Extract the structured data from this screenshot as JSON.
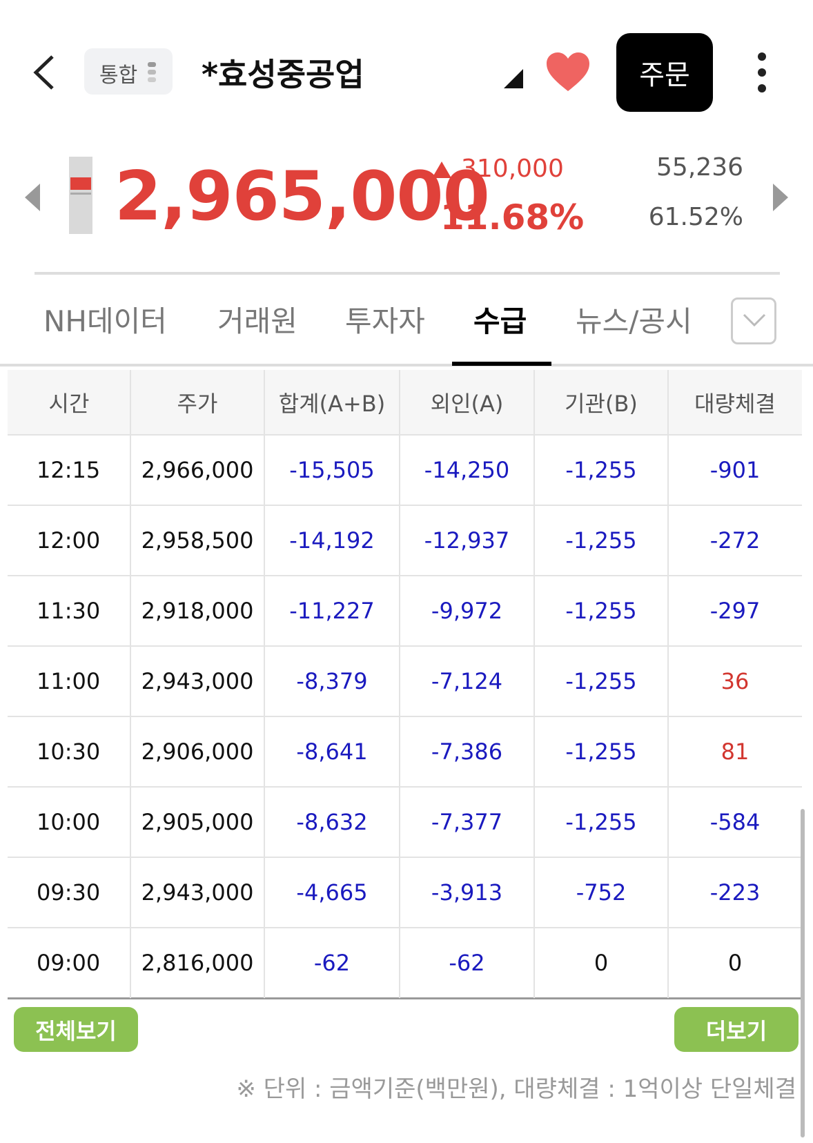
{
  "header": {
    "badge": "통합",
    "stock_name": "*효성중공업",
    "order_button": "주문"
  },
  "price": {
    "current": "2,965,000",
    "change": "310,000",
    "change_rate": "11.68%",
    "volume": "55,236",
    "volume_rate": "61.52%"
  },
  "tabs": {
    "items": [
      "NH데이터",
      "거래원",
      "투자자",
      "수급",
      "뉴스/공시"
    ],
    "active": 3
  },
  "table": {
    "columns": [
      "시간",
      "주가",
      "합계(A+B)",
      "외인(A)",
      "기관(B)",
      "대량체결"
    ],
    "rows": [
      [
        "12:15",
        "2,966,000",
        "-15,505",
        "-14,250",
        "-1,255",
        "-901"
      ],
      [
        "12:00",
        "2,958,500",
        "-14,192",
        "-12,937",
        "-1,255",
        "-272"
      ],
      [
        "11:30",
        "2,918,000",
        "-11,227",
        "-9,972",
        "-1,255",
        "-297"
      ],
      [
        "11:00",
        "2,943,000",
        "-8,379",
        "-7,124",
        "-1,255",
        "36"
      ],
      [
        "10:30",
        "2,906,000",
        "-8,641",
        "-7,386",
        "-1,255",
        "81"
      ],
      [
        "10:00",
        "2,905,000",
        "-8,632",
        "-7,377",
        "-1,255",
        "-584"
      ],
      [
        "09:30",
        "2,943,000",
        "-4,665",
        "-3,913",
        "-752",
        "-223"
      ],
      [
        "09:00",
        "2,816,000",
        "-62",
        "-62",
        "0",
        "0"
      ]
    ]
  },
  "buttons": {
    "view_all": "전체보기",
    "more": "더보기"
  },
  "footnote": "※ 단위 : 금액기준(백만원), 대량체결 : 1억이상 단일체결"
}
